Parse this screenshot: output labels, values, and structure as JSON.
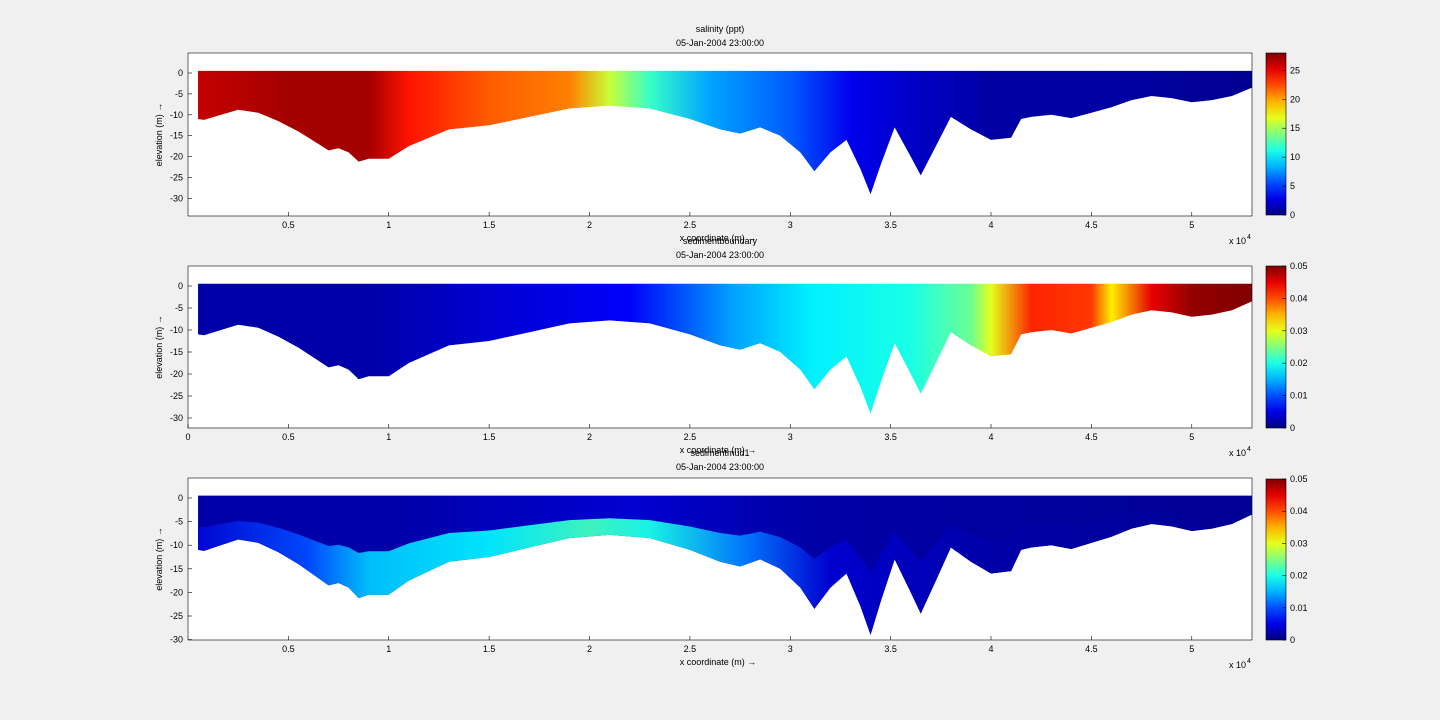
{
  "chart_data": [
    {
      "type": "heatmap",
      "variable": "salinity",
      "title": "salinity (ppt)",
      "subtitle": "05-Jan-2004 23:00:00",
      "xlabel": "x coordinate (m) →",
      "ylabel": "elevation (m) →",
      "x_multiplier": "x 10",
      "x_multiplier_exp": "4",
      "xlim": [
        0,
        5.3
      ],
      "ylim": [
        -35,
        4
      ],
      "x_ticks": [
        0.5,
        1,
        1.5,
        2,
        2.5,
        3,
        3.5,
        4,
        4.5,
        5
      ],
      "x_tick_labels": [
        "0.5",
        "1",
        "1.5",
        "2",
        "2.5",
        "3",
        "3.5",
        "4",
        "4.5",
        "5"
      ],
      "y_ticks": [
        0,
        -5,
        -10,
        -15,
        -20,
        -25,
        -30
      ],
      "y_tick_labels": [
        "0",
        "-5",
        "-10",
        "-15",
        "-20",
        "-25",
        "-30"
      ],
      "colorbar": {
        "min": 0,
        "max": 28,
        "ticks": [
          0,
          5,
          10,
          15,
          20,
          25
        ],
        "tick_labels": [
          "0",
          "5",
          "10",
          "15",
          "20",
          "25"
        ]
      },
      "colormap": "jet",
      "profile_x": [
        0.05,
        0.08,
        0.15,
        0.25,
        0.35,
        0.45,
        0.55,
        0.65,
        0.7,
        0.75,
        0.8,
        0.85,
        0.9,
        1.0,
        1.1,
        1.3,
        1.5,
        1.7,
        1.9,
        2.1,
        2.3,
        2.5,
        2.65,
        2.75,
        2.85,
        2.95,
        3.05,
        3.12,
        3.2,
        3.28,
        3.35,
        3.4,
        3.45,
        3.52,
        3.6,
        3.65,
        3.72,
        3.8,
        3.9,
        4.0,
        4.1,
        4.15,
        4.2,
        4.3,
        4.4,
        4.5,
        4.6,
        4.7,
        4.8,
        4.9,
        5.0,
        5.1,
        5.2,
        5.3
      ],
      "profile": [
        {
          "x": 0.05,
          "surface": 0.5,
          "bottom": -11
        },
        {
          "x": 0.08,
          "surface": 0.5,
          "bottom": -11.2
        },
        {
          "x": 0.15,
          "surface": 0.5,
          "bottom": -10.2
        },
        {
          "x": 0.25,
          "surface": 0.5,
          "bottom": -8.8
        },
        {
          "x": 0.35,
          "surface": 0.5,
          "bottom": -9.5
        },
        {
          "x": 0.45,
          "surface": 0.5,
          "bottom": -11.5
        },
        {
          "x": 0.55,
          "surface": 0.5,
          "bottom": -14
        },
        {
          "x": 0.65,
          "surface": 0.5,
          "bottom": -17
        },
        {
          "x": 0.7,
          "surface": 0.5,
          "bottom": -18.5
        },
        {
          "x": 0.75,
          "surface": 0.5,
          "bottom": -18
        },
        {
          "x": 0.8,
          "surface": 0.5,
          "bottom": -19
        },
        {
          "x": 0.85,
          "surface": 0.5,
          "bottom": -21.2
        },
        {
          "x": 0.9,
          "surface": 0.5,
          "bottom": -20.5
        },
        {
          "x": 1.0,
          "surface": 0.5,
          "bottom": -20.5
        },
        {
          "x": 1.1,
          "surface": 0.5,
          "bottom": -17.5
        },
        {
          "x": 1.3,
          "surface": 0.5,
          "bottom": -13.5
        },
        {
          "x": 1.5,
          "surface": 0.5,
          "bottom": -12.5
        },
        {
          "x": 1.7,
          "surface": 0.5,
          "bottom": -10.5
        },
        {
          "x": 1.9,
          "surface": 0.5,
          "bottom": -8.5
        },
        {
          "x": 2.1,
          "surface": 0.5,
          "bottom": -7.8
        },
        {
          "x": 2.3,
          "surface": 0.5,
          "bottom": -8.5
        },
        {
          "x": 2.5,
          "surface": 0.5,
          "bottom": -11
        },
        {
          "x": 2.65,
          "surface": 0.5,
          "bottom": -13.5
        },
        {
          "x": 2.75,
          "surface": 0.5,
          "bottom": -14.5
        },
        {
          "x": 2.85,
          "surface": 0.5,
          "bottom": -13
        },
        {
          "x": 2.95,
          "surface": 0.5,
          "bottom": -15
        },
        {
          "x": 3.05,
          "surface": 0.5,
          "bottom": -19
        },
        {
          "x": 3.12,
          "surface": 0.5,
          "bottom": -23.5
        },
        {
          "x": 3.2,
          "surface": 0.5,
          "bottom": -19
        },
        {
          "x": 3.28,
          "surface": 0.5,
          "bottom": -16
        },
        {
          "x": 3.35,
          "surface": 0.5,
          "bottom": -23
        },
        {
          "x": 3.4,
          "surface": 0.5,
          "bottom": -29
        },
        {
          "x": 3.45,
          "surface": 0.5,
          "bottom": -22
        },
        {
          "x": 3.52,
          "surface": 0.5,
          "bottom": -13
        },
        {
          "x": 3.6,
          "surface": 0.5,
          "bottom": -20
        },
        {
          "x": 3.65,
          "surface": 0.5,
          "bottom": -24.5
        },
        {
          "x": 3.72,
          "surface": 0.5,
          "bottom": -18
        },
        {
          "x": 3.8,
          "surface": 0.5,
          "bottom": -10.5
        },
        {
          "x": 3.9,
          "surface": 0.5,
          "bottom": -13.5
        },
        {
          "x": 4.0,
          "surface": 0.5,
          "bottom": -16
        },
        {
          "x": 4.1,
          "surface": 0.5,
          "bottom": -15.5
        },
        {
          "x": 4.15,
          "surface": 0.5,
          "bottom": -11
        },
        {
          "x": 4.2,
          "surface": 0.5,
          "bottom": -10.5
        },
        {
          "x": 4.3,
          "surface": 0.5,
          "bottom": -10
        },
        {
          "x": 4.4,
          "surface": 0.5,
          "bottom": -10.8
        },
        {
          "x": 4.5,
          "surface": 0.5,
          "bottom": -9.5
        },
        {
          "x": 4.6,
          "surface": 0.5,
          "bottom": -8.2
        },
        {
          "x": 4.7,
          "surface": 0.5,
          "bottom": -6.5
        },
        {
          "x": 4.8,
          "surface": 0.5,
          "bottom": -5.5
        },
        {
          "x": 4.9,
          "surface": 0.5,
          "bottom": -6
        },
        {
          "x": 5.0,
          "surface": 0.5,
          "bottom": -7
        },
        {
          "x": 5.1,
          "surface": 0.5,
          "bottom": -6.5
        },
        {
          "x": 5.2,
          "surface": 0.5,
          "bottom": -5.5
        },
        {
          "x": 5.3,
          "surface": 0.5,
          "bottom": -3.5
        }
      ],
      "values_along_x": [
        {
          "x": 0.0,
          "value": 26
        },
        {
          "x": 0.5,
          "value": 27
        },
        {
          "x": 0.9,
          "value": 27
        },
        {
          "x": 1.1,
          "value": 24
        },
        {
          "x": 1.5,
          "value": 22
        },
        {
          "x": 1.9,
          "value": 21
        },
        {
          "x": 2.1,
          "value": 16
        },
        {
          "x": 2.3,
          "value": 12
        },
        {
          "x": 2.6,
          "value": 8
        },
        {
          "x": 3.0,
          "value": 6
        },
        {
          "x": 3.3,
          "value": 3
        },
        {
          "x": 3.6,
          "value": 2
        },
        {
          "x": 4.0,
          "value": 1
        },
        {
          "x": 4.5,
          "value": 1
        },
        {
          "x": 5.3,
          "value": 0.5
        }
      ]
    },
    {
      "type": "heatmap",
      "variable": "sedimentboundary",
      "title": "sedimentboundary",
      "subtitle": "05-Jan-2004 23:00:00",
      "xlabel": "x coordinate (m) →",
      "ylabel": "elevation (m) →",
      "x_multiplier": "x 10",
      "x_multiplier_exp": "4",
      "xlim": [
        0,
        5.3
      ],
      "ylim": [
        -32,
        4
      ],
      "x_ticks": [
        0,
        0.5,
        1,
        1.5,
        2,
        2.5,
        3,
        3.5,
        4,
        4.5,
        5
      ],
      "x_tick_labels": [
        "0",
        "0.5",
        "1",
        "1.5",
        "2",
        "2.5",
        "3",
        "3.5",
        "4",
        "4.5",
        "5"
      ],
      "y_ticks": [
        0,
        -5,
        -10,
        -15,
        -20,
        -25,
        -30
      ],
      "y_tick_labels": [
        "0",
        "-5",
        "-10",
        "-15",
        "-20",
        "-25",
        "-30"
      ],
      "colorbar": {
        "min": 0,
        "max": 0.05,
        "ticks": [
          0,
          0.01,
          0.02,
          0.03,
          0.04,
          0.05
        ],
        "tick_labels": [
          "0",
          "0.01",
          "0.02",
          "0.03",
          "0.04",
          "0.05"
        ]
      },
      "colormap": "jet",
      "values_along_x": [
        {
          "x": 0.0,
          "value": 0.002
        },
        {
          "x": 0.9,
          "value": 0.002
        },
        {
          "x": 1.5,
          "value": 0.004
        },
        {
          "x": 2.2,
          "value": 0.006
        },
        {
          "x": 2.7,
          "value": 0.014
        },
        {
          "x": 3.1,
          "value": 0.018
        },
        {
          "x": 3.6,
          "value": 0.02
        },
        {
          "x": 3.9,
          "value": 0.024
        },
        {
          "x": 4.0,
          "value": 0.03
        },
        {
          "x": 4.2,
          "value": 0.042
        },
        {
          "x": 4.5,
          "value": 0.041
        },
        {
          "x": 4.6,
          "value": 0.032
        },
        {
          "x": 4.8,
          "value": 0.045
        },
        {
          "x": 5.0,
          "value": 0.049
        },
        {
          "x": 5.3,
          "value": 0.05
        }
      ]
    },
    {
      "type": "heatmap",
      "variable": "sedimentmud1",
      "title": "sedimentmud1",
      "subtitle": "05-Jan-2004 23:00:00",
      "xlabel": "x coordinate (m) →",
      "ylabel": "elevation (m) →",
      "x_multiplier": "x 10",
      "x_multiplier_exp": "4",
      "xlim": [
        0,
        5.3
      ],
      "ylim": [
        -30,
        4
      ],
      "x_ticks": [
        0.5,
        1,
        1.5,
        2,
        2.5,
        3,
        3.5,
        4,
        4.5,
        5
      ],
      "x_tick_labels": [
        "0.5",
        "1",
        "1.5",
        "2",
        "2.5",
        "3",
        "3.5",
        "4",
        "4.5",
        "5"
      ],
      "y_ticks": [
        0,
        -5,
        -10,
        -15,
        -20,
        -25,
        -30
      ],
      "y_tick_labels": [
        "0",
        "-5",
        "-10",
        "-15",
        "-20",
        "-25",
        "-30"
      ],
      "colorbar": {
        "min": 0,
        "max": 0.05,
        "ticks": [
          0,
          0.01,
          0.02,
          0.03,
          0.04,
          0.05
        ],
        "tick_labels": [
          "0",
          "0.01",
          "0.02",
          "0.03",
          "0.04",
          "0.05"
        ]
      },
      "colormap": "jet",
      "surface_values_along_x": [
        {
          "x": 0.0,
          "value": 0.002
        },
        {
          "x": 1.0,
          "value": 0.002
        },
        {
          "x": 2.2,
          "value": 0.004
        },
        {
          "x": 3.0,
          "value": 0.002
        },
        {
          "x": 5.3,
          "value": 0.001
        }
      ],
      "bottom_values_along_x": [
        {
          "x": 0.0,
          "value": 0.004
        },
        {
          "x": 0.6,
          "value": 0.01
        },
        {
          "x": 0.9,
          "value": 0.016
        },
        {
          "x": 1.5,
          "value": 0.018
        },
        {
          "x": 2.0,
          "value": 0.022
        },
        {
          "x": 2.3,
          "value": 0.02
        },
        {
          "x": 2.8,
          "value": 0.012
        },
        {
          "x": 3.2,
          "value": 0.004
        },
        {
          "x": 4.0,
          "value": 0.002
        },
        {
          "x": 5.3,
          "value": 0.001
        }
      ]
    }
  ]
}
